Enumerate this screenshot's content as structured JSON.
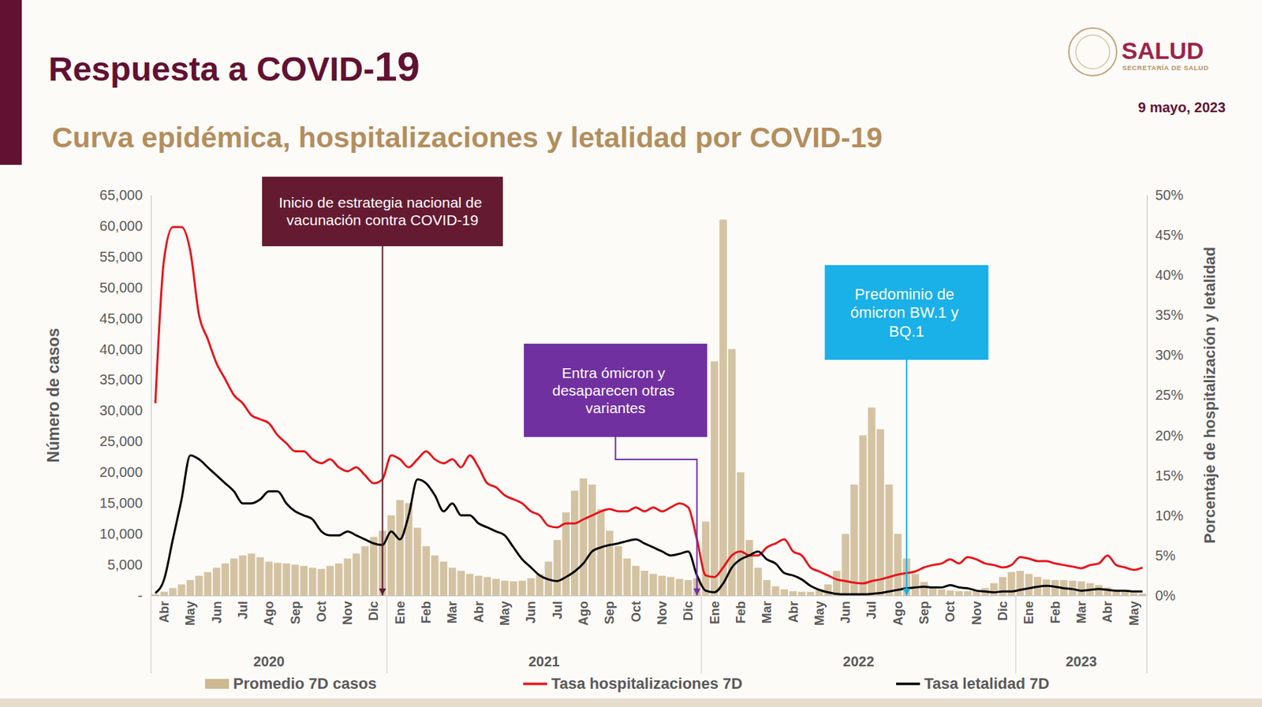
{
  "header": {
    "title": "Respuesta a COVID-19",
    "logo": "SALUD",
    "logo_subtitle": "SECRETARÍA DE SALUD",
    "date": "9 mayo, 2023"
  },
  "chart_data": {
    "type": "bar",
    "title": "Curva epidémica, hospitalizaciones y letalidad por COVID-19",
    "categories": [
      null,
      "Abr",
      null,
      null,
      "May",
      null,
      null,
      "Jun",
      null,
      null,
      "Jul",
      null,
      null,
      "Ago",
      null,
      null,
      "Sep",
      null,
      null,
      "Oct",
      null,
      null,
      "Nov",
      null,
      null,
      "Dic",
      null,
      null,
      "Ene",
      null,
      null,
      "Feb",
      null,
      null,
      "Mar",
      null,
      null,
      "Abr",
      null,
      null,
      "May",
      null,
      null,
      "Jun",
      null,
      null,
      "Jul",
      null,
      null,
      "Ago",
      null,
      null,
      "Sep",
      null,
      null,
      "Oct",
      null,
      null,
      "Nov",
      null,
      null,
      "Dic",
      null,
      null,
      "Ene",
      null,
      null,
      "Feb",
      null,
      null,
      "Mar",
      null,
      null,
      "Abr",
      null,
      null,
      "May",
      null,
      null,
      "Jun",
      null,
      null,
      "Jul",
      null,
      null,
      "Ago",
      null,
      null,
      "Sep",
      null,
      null,
      "Oct",
      null,
      null,
      "Nov",
      null,
      null,
      "Dic",
      null,
      null,
      "Ene",
      null,
      null,
      "Feb",
      null,
      null,
      "Mar",
      null,
      null,
      "Abr",
      null,
      null,
      "May",
      null
    ],
    "year_labels": [
      "2020",
      "2021",
      "2022",
      "2023"
    ],
    "series": [
      {
        "name": "Promedio 7D casos",
        "type": "bar",
        "color": "#cdb894",
        "values": [
          200,
          600,
          1200,
          1800,
          2500,
          3200,
          3800,
          4500,
          5200,
          6000,
          6500,
          6800,
          6200,
          5500,
          5300,
          5200,
          5000,
          4800,
          4500,
          4300,
          4800,
          5200,
          6000,
          6800,
          8000,
          9500,
          10500,
          13000,
          15500,
          15000,
          11000,
          8000,
          6500,
          5500,
          4500,
          4000,
          3500,
          3200,
          3000,
          2700,
          2400,
          2300,
          2400,
          2800,
          3500,
          5500,
          9000,
          13500,
          17000,
          19000,
          18000,
          14000,
          10500,
          8000,
          6000,
          4800,
          4000,
          3500,
          3200,
          3000,
          2700,
          2500,
          2800,
          12000,
          38000,
          61000,
          40000,
          20000,
          9000,
          4500,
          2500,
          1500,
          1000,
          700,
          600,
          600,
          900,
          1800,
          4000,
          10000,
          18000,
          26000,
          30500,
          27000,
          18000,
          10000,
          6000,
          3500,
          2200,
          1500,
          1000,
          800,
          700,
          700,
          800,
          1200,
          2000,
          3000,
          3800,
          4000,
          3500,
          3000,
          2600,
          2500,
          2500,
          2400,
          2300,
          2000,
          1700,
          1300,
          900,
          600,
          400,
          300
        ]
      },
      {
        "name": "Tasa hospitalizaciones 7D",
        "type": "line",
        "color": "#e8141b",
        "axis": "y2",
        "values": [
          24,
          42,
          46,
          46,
          43,
          35,
          32,
          29,
          27,
          25,
          24,
          22.5,
          22,
          21.5,
          20,
          19,
          18,
          18,
          17,
          16.5,
          17,
          16,
          15.5,
          16,
          15,
          14,
          14.5,
          17.5,
          17,
          16,
          17,
          18,
          17,
          16.5,
          17,
          16,
          17.5,
          16,
          14,
          13.5,
          12.5,
          12,
          11.5,
          10.5,
          10,
          8.7,
          8.5,
          9,
          9,
          9.5,
          10,
          10.5,
          10.8,
          10.5,
          10.5,
          11,
          10.5,
          11,
          10.5,
          11,
          11.5,
          11,
          7,
          2.5,
          2.3,
          3.5,
          5,
          5.5,
          5,
          5,
          6,
          6.5,
          7,
          5.5,
          5,
          3.5,
          3,
          2.5,
          2,
          1.8,
          1.6,
          1.5,
          1.8,
          2,
          2.3,
          2.6,
          2.8,
          3,
          3.5,
          3.8,
          4,
          4.5,
          4,
          4.8,
          4.5,
          4,
          3.8,
          3.5,
          3.8,
          4.8,
          4.6,
          4.3,
          4.3,
          4,
          3.8,
          3.6,
          3.4,
          3.8,
          4,
          5,
          3.8,
          3.5,
          3.2,
          3.5
        ]
      },
      {
        "name": "Tasa letalidad 7D",
        "type": "line",
        "color": "#000000",
        "axis": "y2",
        "values": [
          0.3,
          2,
          7,
          12,
          17.5,
          17,
          16,
          15,
          14,
          13,
          11.5,
          11.5,
          12,
          13,
          13,
          11.5,
          10.5,
          10,
          9.5,
          8,
          7.5,
          7.5,
          8,
          7.5,
          7,
          6.5,
          6.3,
          8,
          7,
          10,
          14.5,
          14,
          12.5,
          10.5,
          11.5,
          10,
          10,
          9,
          8.5,
          8,
          7.5,
          6,
          4.5,
          3.5,
          2.5,
          2,
          1.8,
          2.3,
          3,
          4,
          5.5,
          6,
          6.3,
          6.5,
          6.8,
          7,
          6.5,
          6,
          5.5,
          5,
          5.2,
          5.5,
          2.5,
          0.6,
          0.4,
          1.5,
          3.5,
          4.5,
          5,
          5.5,
          4.5,
          4,
          2.8,
          2.5,
          2,
          1.2,
          0.7,
          0.4,
          0.2,
          0.15,
          0.15,
          0.15,
          0.2,
          0.3,
          0.5,
          0.7,
          0.9,
          1,
          1.1,
          1,
          1,
          1.3,
          1,
          0.9,
          0.6,
          0.5,
          0.4,
          0.5,
          0.5,
          0.7,
          0.9,
          1.1,
          1.2,
          1.1,
          0.9,
          0.8,
          0.6,
          0.7,
          0.8,
          0.7,
          0.6,
          0.6,
          0.5,
          0.5
        ]
      }
    ],
    "ylim": [
      0,
      65000
    ],
    "yticks": [
      {
        "value": 0,
        "label": "-"
      },
      {
        "value": 5000,
        "label": "5,000"
      },
      {
        "value": 10000,
        "label": "10,000"
      },
      {
        "value": 15000,
        "label": "15,000"
      },
      {
        "value": 20000,
        "label": "20,000"
      },
      {
        "value": 25000,
        "label": "25,000"
      },
      {
        "value": 30000,
        "label": "30,000"
      },
      {
        "value": 35000,
        "label": "35,000"
      },
      {
        "value": 40000,
        "label": "40,000"
      },
      {
        "value": 45000,
        "label": "45,000"
      },
      {
        "value": 50000,
        "label": "50,000"
      },
      {
        "value": 55000,
        "label": "55,000"
      },
      {
        "value": 60000,
        "label": "60,000"
      },
      {
        "value": 65000,
        "label": "65,000"
      }
    ],
    "y2lim": [
      0,
      50
    ],
    "y2ticks": [
      {
        "value": 0,
        "label": "0%"
      },
      {
        "value": 5,
        "label": "5%"
      },
      {
        "value": 10,
        "label": "10%"
      },
      {
        "value": 15,
        "label": "15%"
      },
      {
        "value": 20,
        "label": "20%"
      },
      {
        "value": 25,
        "label": "25%"
      },
      {
        "value": 30,
        "label": "30%"
      },
      {
        "value": 35,
        "label": "35%"
      },
      {
        "value": 40,
        "label": "40%"
      },
      {
        "value": 45,
        "label": "45%"
      },
      {
        "value": 50,
        "label": "50%"
      }
    ],
    "y_label": "Número de casos",
    "y2_label": "Porcentaje de hospitalización y letalidad",
    "annotations": [
      {
        "text": "Inicio de estrategia nacional de vacunación contra COVID-19",
        "x": 26,
        "color": "#641b32"
      },
      {
        "text": "Entra ómicron y desaparecen otras variantes",
        "x": 62,
        "color": "#7030a0"
      },
      {
        "text": "Predominio de ómicron BW.1 y BQ.1",
        "x": 86,
        "color": "#1ab0e8"
      }
    ],
    "legend": "bottom",
    "grid": false
  }
}
